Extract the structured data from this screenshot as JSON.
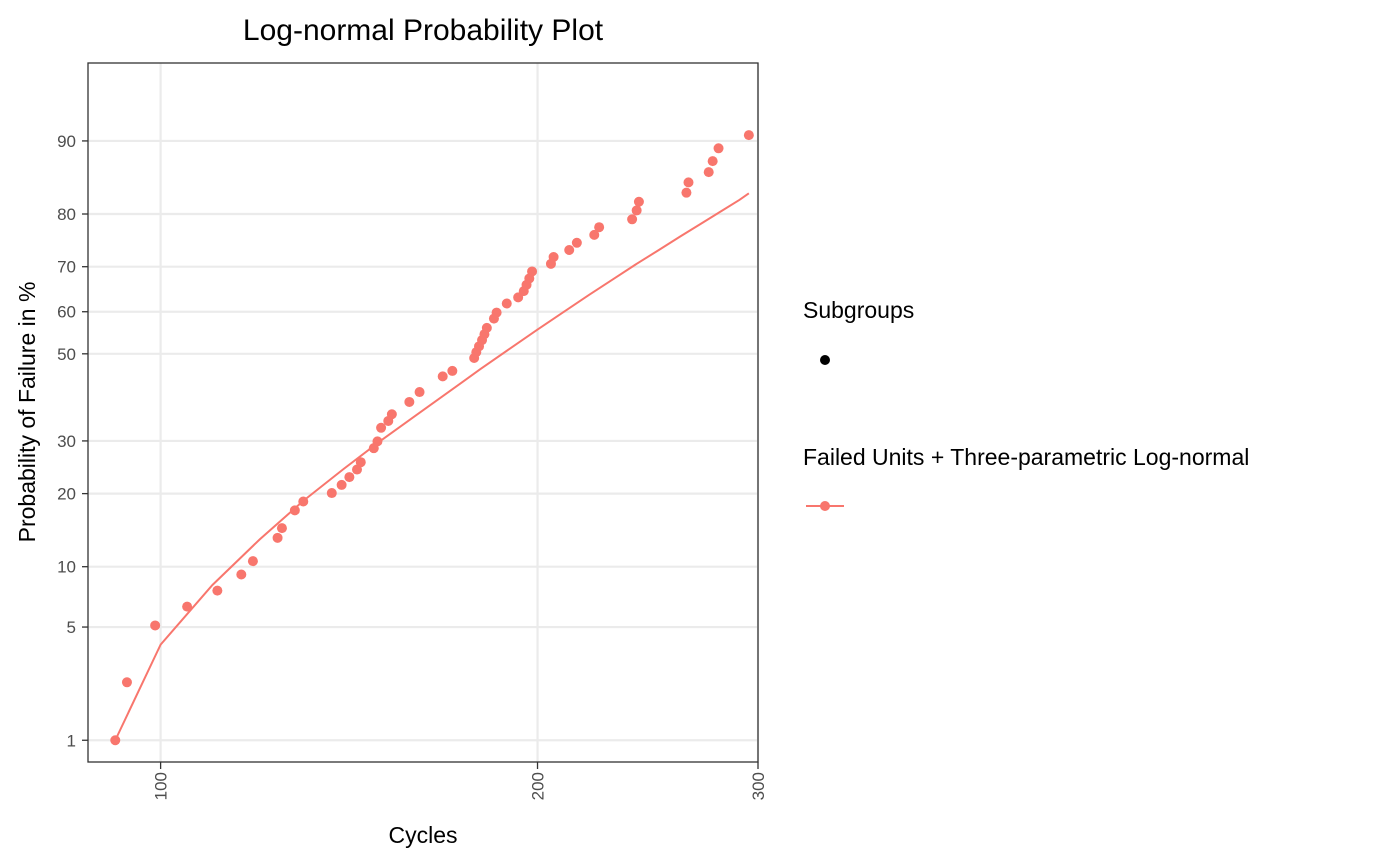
{
  "chart_data": {
    "type": "scatter",
    "title": "Log-normal Probability Plot",
    "xlabel": "Cycles",
    "ylabel": "Probability of Failure in %",
    "x_scale": "log",
    "y_scale": "lognormal-probability",
    "x_ticks": [
      100,
      200,
      300
    ],
    "y_ticks": [
      1,
      5,
      10,
      20,
      30,
      50,
      60,
      70,
      80,
      90
    ],
    "xlim": [
      87.5,
      300
    ],
    "ylim": [
      0.7,
      96
    ],
    "grid": true,
    "legend_position": "right",
    "legend": [
      {
        "title": "Subgroups",
        "key": "point",
        "color": "#000000"
      },
      {
        "title": "Failed Units + Three-parametric Log-normal",
        "key": "point-line",
        "color": "#F8766D"
      }
    ],
    "series": [
      {
        "name": "Failed Units + Three-parametric Log-normal",
        "color": "#F8766D",
        "points": [
          [
            92,
            1.0
          ],
          [
            94,
            2.4
          ],
          [
            99,
            5.1
          ],
          [
            105,
            6.4
          ],
          [
            111,
            7.7
          ],
          [
            116,
            9.2
          ],
          [
            118.5,
            10.6
          ],
          [
            124,
            13.4
          ],
          [
            125,
            14.7
          ],
          [
            128,
            17.3
          ],
          [
            130,
            18.7
          ],
          [
            137,
            20.1
          ],
          [
            139.5,
            21.5
          ],
          [
            141.5,
            22.9
          ],
          [
            143.5,
            24.3
          ],
          [
            144.5,
            25.7
          ],
          [
            148,
            28.5
          ],
          [
            149,
            29.9
          ],
          [
            150,
            32.8
          ],
          [
            152,
            34.3
          ],
          [
            153,
            35.8
          ],
          [
            158,
            38.6
          ],
          [
            161,
            40.9
          ],
          [
            168,
            44.6
          ],
          [
            171,
            45.9
          ],
          [
            178,
            49.0
          ],
          [
            178.7,
            50.4
          ],
          [
            179.6,
            51.8
          ],
          [
            180.6,
            53.3
          ],
          [
            181.4,
            54.7
          ],
          [
            182.2,
            56.2
          ],
          [
            184.6,
            58.4
          ],
          [
            185.5,
            59.8
          ],
          [
            189,
            61.9
          ],
          [
            193,
            63.3
          ],
          [
            195,
            64.7
          ],
          [
            196,
            66.1
          ],
          [
            197,
            67.5
          ],
          [
            198,
            69.0
          ],
          [
            205,
            70.6
          ],
          [
            206,
            72.0
          ],
          [
            212,
            73.4
          ],
          [
            215,
            74.8
          ],
          [
            222,
            76.3
          ],
          [
            224,
            77.7
          ],
          [
            238,
            79.1
          ],
          [
            240,
            80.6
          ],
          [
            241,
            82.0
          ],
          [
            263,
            83.4
          ],
          [
            264,
            84.9
          ],
          [
            274,
            86.3
          ],
          [
            276,
            87.7
          ],
          [
            279,
            89.2
          ],
          [
            295,
            90.6
          ]
        ],
        "fit_curve": [
          [
            92,
            1.0
          ],
          [
            100,
            4.0
          ],
          [
            110,
            8.2
          ],
          [
            120,
            13.2
          ],
          [
            130,
            18.8
          ],
          [
            140,
            24.4
          ],
          [
            150,
            30.1
          ],
          [
            160,
            35.6
          ],
          [
            170,
            41.0
          ],
          [
            180,
            46.3
          ],
          [
            190,
            51.2
          ],
          [
            200,
            55.8
          ],
          [
            210,
            60.0
          ],
          [
            220,
            63.9
          ],
          [
            230,
            67.4
          ],
          [
            240,
            70.6
          ],
          [
            250,
            73.4
          ],
          [
            260,
            76.0
          ],
          [
            270,
            78.3
          ],
          [
            280,
            80.4
          ],
          [
            290,
            82.3
          ],
          [
            295,
            83.3
          ]
        ]
      }
    ]
  }
}
